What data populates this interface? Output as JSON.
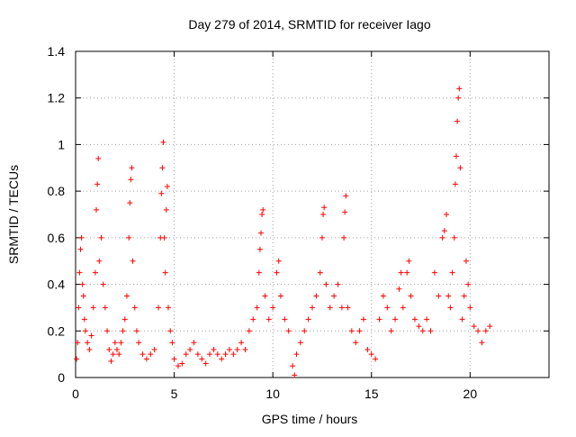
{
  "chart_data": {
    "type": "scatter",
    "title": "Day 279 of 2014, SRMTID for receiver Iago",
    "xlabel": "GPS time / hours",
    "ylabel": "SRMTID / TECUs",
    "xlim": [
      0,
      24
    ],
    "ylim": [
      0,
      1.4
    ],
    "xticks": [
      0,
      5,
      10,
      15,
      20
    ],
    "yticks": [
      0,
      0.2,
      0.4,
      0.6,
      0.8,
      1,
      1.2,
      1.4
    ],
    "xtick_labels": [
      "0",
      "5",
      "10",
      "15",
      "20"
    ],
    "ytick_labels": [
      "0",
      "0.2",
      "0.4",
      "0.6",
      "0.8",
      "1",
      "1.2",
      "1.4"
    ],
    "grid": true,
    "marker": "+",
    "color": "#ff0000",
    "series": [
      {
        "name": "SRMTID",
        "points": [
          [
            0.05,
            0.08
          ],
          [
            0.1,
            0.15
          ],
          [
            0.15,
            0.3
          ],
          [
            0.2,
            0.45
          ],
          [
            0.25,
            0.55
          ],
          [
            0.3,
            0.6
          ],
          [
            0.35,
            0.4
          ],
          [
            0.4,
            0.35
          ],
          [
            0.45,
            0.25
          ],
          [
            0.5,
            0.2
          ],
          [
            0.6,
            0.15
          ],
          [
            0.7,
            0.12
          ],
          [
            0.8,
            0.18
          ],
          [
            0.9,
            0.3
          ],
          [
            1.0,
            0.45
          ],
          [
            1.05,
            0.72
          ],
          [
            1.1,
            0.83
          ],
          [
            1.15,
            0.94
          ],
          [
            1.2,
            0.5
          ],
          [
            1.3,
            0.6
          ],
          [
            1.4,
            0.4
          ],
          [
            1.5,
            0.3
          ],
          [
            1.6,
            0.2
          ],
          [
            1.7,
            0.12
          ],
          [
            1.8,
            0.07
          ],
          [
            1.9,
            0.1
          ],
          [
            2.0,
            0.15
          ],
          [
            2.1,
            0.12
          ],
          [
            2.2,
            0.1
          ],
          [
            2.3,
            0.15
          ],
          [
            2.4,
            0.2
          ],
          [
            2.5,
            0.25
          ],
          [
            2.6,
            0.35
          ],
          [
            2.7,
            0.6
          ],
          [
            2.75,
            0.75
          ],
          [
            2.8,
            0.85
          ],
          [
            2.85,
            0.9
          ],
          [
            2.9,
            0.5
          ],
          [
            3.0,
            0.3
          ],
          [
            3.1,
            0.2
          ],
          [
            3.2,
            0.15
          ],
          [
            3.4,
            0.1
          ],
          [
            3.6,
            0.08
          ],
          [
            3.8,
            0.1
          ],
          [
            4.0,
            0.12
          ],
          [
            4.2,
            0.3
          ],
          [
            4.3,
            0.6
          ],
          [
            4.35,
            0.79
          ],
          [
            4.4,
            0.9
          ],
          [
            4.45,
            1.01
          ],
          [
            4.5,
            0.6
          ],
          [
            4.55,
            0.45
          ],
          [
            4.6,
            0.72
          ],
          [
            4.65,
            0.82
          ],
          [
            4.7,
            0.3
          ],
          [
            4.8,
            0.2
          ],
          [
            4.9,
            0.15
          ],
          [
            5.0,
            0.08
          ],
          [
            5.2,
            0.05
          ],
          [
            5.4,
            0.06
          ],
          [
            5.6,
            0.1
          ],
          [
            5.8,
            0.12
          ],
          [
            6.0,
            0.15
          ],
          [
            6.2,
            0.1
          ],
          [
            6.4,
            0.08
          ],
          [
            6.6,
            0.06
          ],
          [
            6.8,
            0.1
          ],
          [
            7.0,
            0.12
          ],
          [
            7.2,
            0.1
          ],
          [
            7.4,
            0.08
          ],
          [
            7.6,
            0.1
          ],
          [
            7.8,
            0.12
          ],
          [
            8.0,
            0.1
          ],
          [
            8.2,
            0.12
          ],
          [
            8.4,
            0.15
          ],
          [
            8.6,
            0.12
          ],
          [
            8.8,
            0.2
          ],
          [
            9.0,
            0.25
          ],
          [
            9.2,
            0.3
          ],
          [
            9.3,
            0.45
          ],
          [
            9.35,
            0.55
          ],
          [
            9.4,
            0.62
          ],
          [
            9.45,
            0.7
          ],
          [
            9.5,
            0.72
          ],
          [
            9.6,
            0.35
          ],
          [
            9.8,
            0.25
          ],
          [
            10.0,
            0.3
          ],
          [
            10.2,
            0.45
          ],
          [
            10.3,
            0.5
          ],
          [
            10.4,
            0.35
          ],
          [
            10.6,
            0.25
          ],
          [
            10.8,
            0.2
          ],
          [
            11.0,
            0.05
          ],
          [
            11.1,
            0.01
          ],
          [
            11.2,
            0.1
          ],
          [
            11.4,
            0.15
          ],
          [
            11.6,
            0.2
          ],
          [
            11.8,
            0.25
          ],
          [
            12.0,
            0.3
          ],
          [
            12.2,
            0.35
          ],
          [
            12.4,
            0.45
          ],
          [
            12.5,
            0.6
          ],
          [
            12.55,
            0.7
          ],
          [
            12.6,
            0.73
          ],
          [
            12.7,
            0.4
          ],
          [
            12.9,
            0.3
          ],
          [
            13.1,
            0.35
          ],
          [
            13.3,
            0.4
          ],
          [
            13.5,
            0.3
          ],
          [
            13.6,
            0.6
          ],
          [
            13.65,
            0.71
          ],
          [
            13.7,
            0.78
          ],
          [
            13.8,
            0.3
          ],
          [
            14.0,
            0.2
          ],
          [
            14.2,
            0.15
          ],
          [
            14.4,
            0.2
          ],
          [
            14.6,
            0.25
          ],
          [
            14.8,
            0.12
          ],
          [
            15.0,
            0.1
          ],
          [
            15.2,
            0.08
          ],
          [
            15.4,
            0.25
          ],
          [
            15.6,
            0.35
          ],
          [
            15.8,
            0.3
          ],
          [
            16.0,
            0.2
          ],
          [
            16.2,
            0.25
          ],
          [
            16.4,
            0.38
          ],
          [
            16.5,
            0.45
          ],
          [
            16.6,
            0.3
          ],
          [
            16.8,
            0.45
          ],
          [
            16.9,
            0.5
          ],
          [
            17.0,
            0.35
          ],
          [
            17.2,
            0.25
          ],
          [
            17.4,
            0.22
          ],
          [
            17.6,
            0.2
          ],
          [
            17.8,
            0.25
          ],
          [
            18.0,
            0.2
          ],
          [
            18.2,
            0.45
          ],
          [
            18.4,
            0.35
          ],
          [
            18.6,
            0.6
          ],
          [
            18.7,
            0.63
          ],
          [
            18.8,
            0.7
          ],
          [
            18.9,
            0.35
          ],
          [
            19.0,
            0.3
          ],
          [
            19.1,
            0.45
          ],
          [
            19.2,
            0.6
          ],
          [
            19.25,
            0.83
          ],
          [
            19.3,
            0.95
          ],
          [
            19.35,
            1.1
          ],
          [
            19.4,
            1.2
          ],
          [
            19.45,
            1.24
          ],
          [
            19.5,
            0.9
          ],
          [
            19.6,
            0.25
          ],
          [
            19.7,
            0.35
          ],
          [
            19.8,
            0.5
          ],
          [
            19.9,
            0.4
          ],
          [
            20.0,
            0.3
          ],
          [
            20.2,
            0.22
          ],
          [
            20.4,
            0.2
          ],
          [
            20.6,
            0.15
          ],
          [
            20.8,
            0.2
          ],
          [
            21.0,
            0.22
          ]
        ]
      }
    ]
  }
}
